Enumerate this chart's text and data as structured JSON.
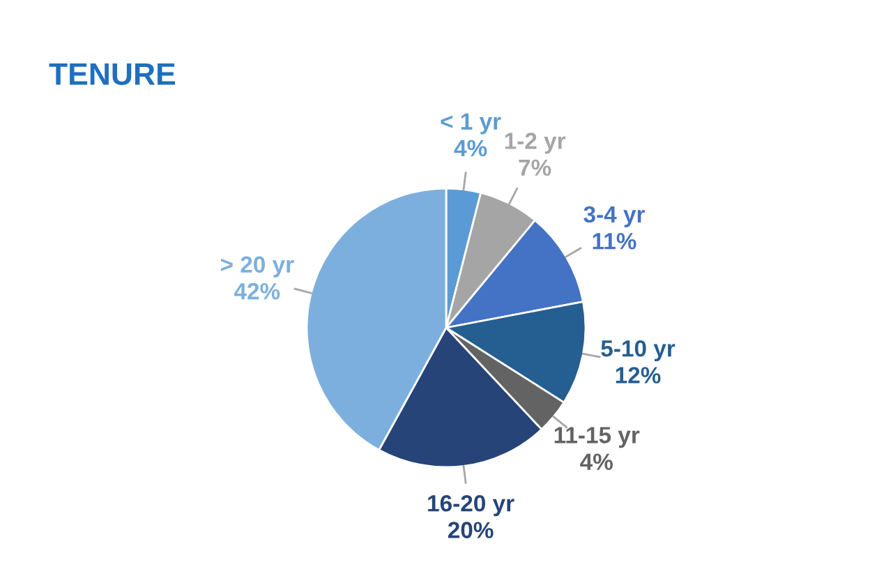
{
  "chart_data": {
    "type": "pie",
    "title": "TENURE",
    "categories": [
      "< 1 yr",
      "1-2 yr",
      "3-4 yr",
      "5-10 yr",
      "11-15 yr",
      "16-20 yr",
      "> 20 yr"
    ],
    "values": [
      4,
      7,
      11,
      12,
      4,
      20,
      42
    ],
    "value_labels": [
      "4%",
      "7%",
      "11%",
      "12%",
      "4%",
      "20%",
      "42%"
    ],
    "colors": [
      "#5b9bd5",
      "#a5a5a5",
      "#4472c4",
      "#255e91",
      "#636363",
      "#264478",
      "#7cafdd"
    ]
  }
}
